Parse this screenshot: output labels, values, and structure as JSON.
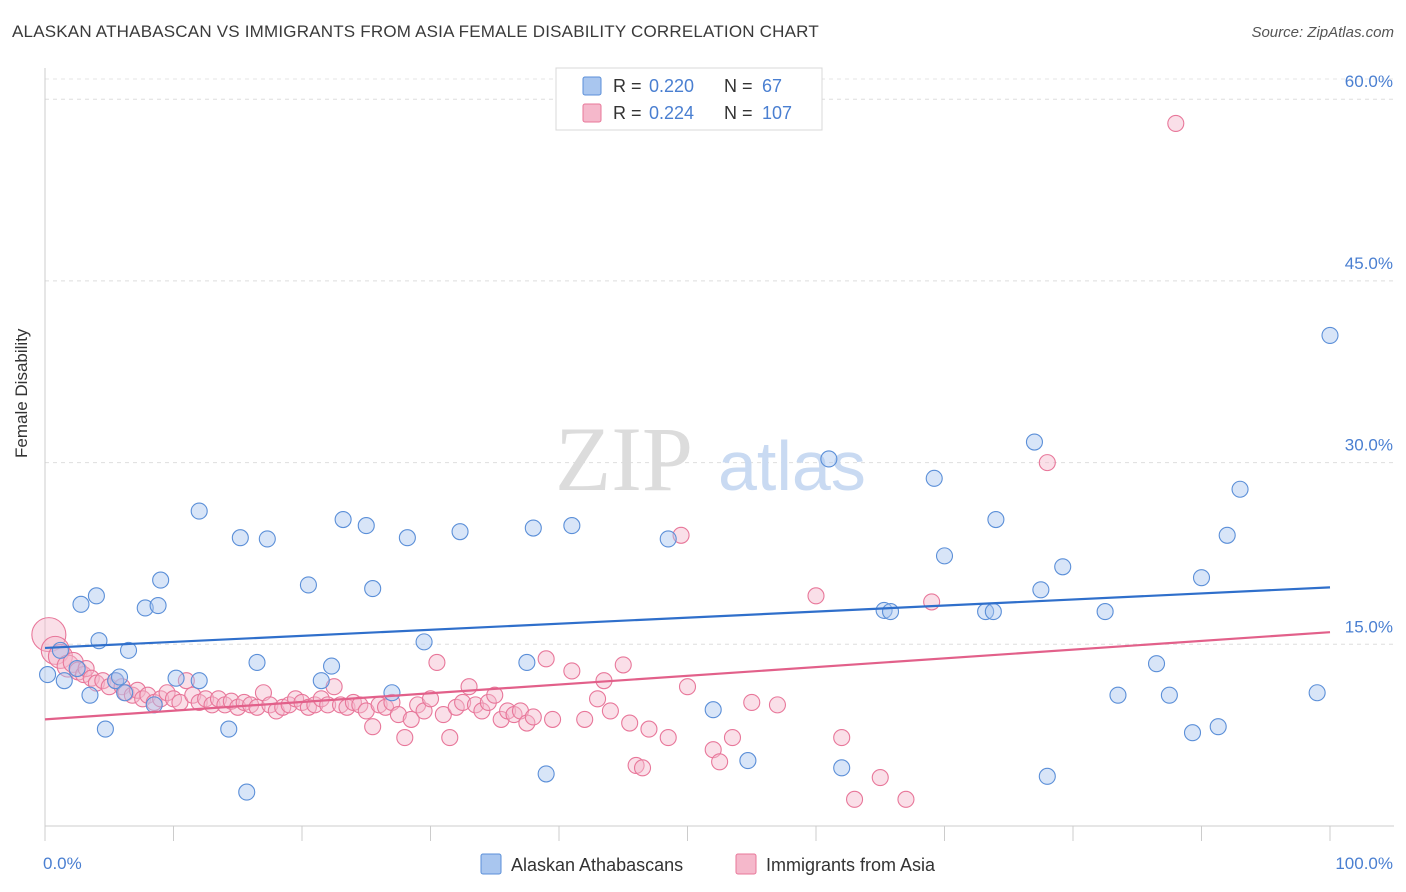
{
  "title": "ALASKAN ATHABASCAN VS IMMIGRANTS FROM ASIA FEMALE DISABILITY CORRELATION CHART",
  "source": "Source: ZipAtlas.com",
  "watermark": {
    "zip": "ZIP",
    "atlas": "atlas"
  },
  "chart_data": {
    "type": "scatter",
    "xlabel": "",
    "ylabel": "Female Disability",
    "xlim": [
      0,
      100
    ],
    "ylim": [
      0,
      62
    ],
    "x_tick_labels": [
      "0.0%",
      "100.0%"
    ],
    "y_ticks": [
      15,
      30,
      45,
      60
    ],
    "y_tick_labels": [
      "15.0%",
      "30.0%",
      "45.0%",
      "60.0%"
    ],
    "grid": true,
    "legend_position": "top-center",
    "colors": {
      "blue": "#5b8fd8",
      "blue_fill": "#a9c6ef",
      "blue_line": "#2f6fcb",
      "pink": "#e8779a",
      "pink_fill": "#f5b8cb",
      "pink_line": "#e2608a",
      "tick_label": "#4a7fd1"
    },
    "stats": [
      {
        "r_label": "R = ",
        "r_value": "0.220",
        "n_label": "N = ",
        "n_value": " 67"
      },
      {
        "r_label": "R = ",
        "r_value": "0.224",
        "n_label": "N = ",
        "n_value": "107"
      }
    ],
    "series": [
      {
        "name": "Alaskan Athabascans",
        "color": "#5b8fd8",
        "trend": [
          [
            0,
            14.7
          ],
          [
            100,
            19.7
          ]
        ],
        "points": [
          [
            0.2,
            12.5
          ],
          [
            1.5,
            12.0
          ],
          [
            1.2,
            14.5
          ],
          [
            2.5,
            13.0
          ],
          [
            2.8,
            18.3
          ],
          [
            3.5,
            10.8
          ],
          [
            4.0,
            19.0
          ],
          [
            4.2,
            15.3
          ],
          [
            4.7,
            8.0
          ],
          [
            5.5,
            12.0
          ],
          [
            5.8,
            12.3
          ],
          [
            6.2,
            11.0
          ],
          [
            6.5,
            14.5
          ],
          [
            7.8,
            18.0
          ],
          [
            8.5,
            10.0
          ],
          [
            8.8,
            18.2
          ],
          [
            9.0,
            20.3
          ],
          [
            10.2,
            12.2
          ],
          [
            12.0,
            12.0
          ],
          [
            12.0,
            26.0
          ],
          [
            14.3,
            8.0
          ],
          [
            15.2,
            23.8
          ],
          [
            15.7,
            2.8
          ],
          [
            16.5,
            13.5
          ],
          [
            17.3,
            23.7
          ],
          [
            20.5,
            19.9
          ],
          [
            21.5,
            12.0
          ],
          [
            22.3,
            13.2
          ],
          [
            23.2,
            25.3
          ],
          [
            25.0,
            24.8
          ],
          [
            25.5,
            19.6
          ],
          [
            27.0,
            11.0
          ],
          [
            28.2,
            23.8
          ],
          [
            29.5,
            15.2
          ],
          [
            32.3,
            24.3
          ],
          [
            37.5,
            13.5
          ],
          [
            38.0,
            24.6
          ],
          [
            39.0,
            4.3
          ],
          [
            41.0,
            24.8
          ],
          [
            48.5,
            23.7
          ],
          [
            52.0,
            9.6
          ],
          [
            54.7,
            5.4
          ],
          [
            61.0,
            30.3
          ],
          [
            62.0,
            4.8
          ],
          [
            65.3,
            17.8
          ],
          [
            65.8,
            17.7
          ],
          [
            69.2,
            28.7
          ],
          [
            70.0,
            22.3
          ],
          [
            73.2,
            17.7
          ],
          [
            73.8,
            17.7
          ],
          [
            74.0,
            25.3
          ],
          [
            77.0,
            31.7
          ],
          [
            77.5,
            19.5
          ],
          [
            78.0,
            4.1
          ],
          [
            79.2,
            21.4
          ],
          [
            82.5,
            17.7
          ],
          [
            83.5,
            10.8
          ],
          [
            86.5,
            13.4
          ],
          [
            87.5,
            10.8
          ],
          [
            89.3,
            7.7
          ],
          [
            90.0,
            20.5
          ],
          [
            91.3,
            8.2
          ],
          [
            92.0,
            24.0
          ],
          [
            93.0,
            27.8
          ],
          [
            99.0,
            11.0
          ],
          [
            100.0,
            40.5
          ]
        ]
      },
      {
        "name": "Immigrants from Asia",
        "color": "#e8779a",
        "trend": [
          [
            0,
            8.8
          ],
          [
            100,
            16.0
          ]
        ],
        "points": [
          [
            0.3,
            15.8
          ],
          [
            0.8,
            14.5
          ],
          [
            1.2,
            14.0
          ],
          [
            1.8,
            13.2
          ],
          [
            2.2,
            13.5
          ],
          [
            2.6,
            12.8
          ],
          [
            3.0,
            12.5
          ],
          [
            3.2,
            13.0
          ],
          [
            3.6,
            12.2
          ],
          [
            4.0,
            11.8
          ],
          [
            4.5,
            12.0
          ],
          [
            5.0,
            11.5
          ],
          [
            5.5,
            12.0
          ],
          [
            6.0,
            11.5
          ],
          [
            6.3,
            11.0
          ],
          [
            6.8,
            10.8
          ],
          [
            7.2,
            11.2
          ],
          [
            7.6,
            10.5
          ],
          [
            8.0,
            10.8
          ],
          [
            8.5,
            10.2
          ],
          [
            9.0,
            10.5
          ],
          [
            9.5,
            11.0
          ],
          [
            10.0,
            10.5
          ],
          [
            10.5,
            10.2
          ],
          [
            11.0,
            12.0
          ],
          [
            11.5,
            10.8
          ],
          [
            12.0,
            10.2
          ],
          [
            12.5,
            10.5
          ],
          [
            13.0,
            10.0
          ],
          [
            13.5,
            10.5
          ],
          [
            14.0,
            10.0
          ],
          [
            14.5,
            10.3
          ],
          [
            15.0,
            9.8
          ],
          [
            15.5,
            10.2
          ],
          [
            16.0,
            10.0
          ],
          [
            16.5,
            9.8
          ],
          [
            17.0,
            11.0
          ],
          [
            17.5,
            10.0
          ],
          [
            18.0,
            9.5
          ],
          [
            18.5,
            9.8
          ],
          [
            19.0,
            10.0
          ],
          [
            19.5,
            10.5
          ],
          [
            20.0,
            10.2
          ],
          [
            20.5,
            9.8
          ],
          [
            21.0,
            10.0
          ],
          [
            21.5,
            10.5
          ],
          [
            22.0,
            10.0
          ],
          [
            22.5,
            11.5
          ],
          [
            23.0,
            10.0
          ],
          [
            23.5,
            9.8
          ],
          [
            24.0,
            10.2
          ],
          [
            24.5,
            10.0
          ],
          [
            25.0,
            9.5
          ],
          [
            25.5,
            8.2
          ],
          [
            26.0,
            10.0
          ],
          [
            26.5,
            9.8
          ],
          [
            27.0,
            10.2
          ],
          [
            27.5,
            9.2
          ],
          [
            28.0,
            7.3
          ],
          [
            28.5,
            8.8
          ],
          [
            29.0,
            10.0
          ],
          [
            29.5,
            9.5
          ],
          [
            30.0,
            10.5
          ],
          [
            30.5,
            13.5
          ],
          [
            31.0,
            9.2
          ],
          [
            31.5,
            7.3
          ],
          [
            32.0,
            9.8
          ],
          [
            32.5,
            10.2
          ],
          [
            33.0,
            11.5
          ],
          [
            33.5,
            10.0
          ],
          [
            34.0,
            9.5
          ],
          [
            34.5,
            10.2
          ],
          [
            35.0,
            10.8
          ],
          [
            35.5,
            8.8
          ],
          [
            36.0,
            9.5
          ],
          [
            36.5,
            9.2
          ],
          [
            37.0,
            9.5
          ],
          [
            37.5,
            8.5
          ],
          [
            38.0,
            9.0
          ],
          [
            39.0,
            13.8
          ],
          [
            39.5,
            8.8
          ],
          [
            41.0,
            12.8
          ],
          [
            42.0,
            8.8
          ],
          [
            43.0,
            10.5
          ],
          [
            43.5,
            12.0
          ],
          [
            44.0,
            9.5
          ],
          [
            45.0,
            13.3
          ],
          [
            45.5,
            8.5
          ],
          [
            46.0,
            5.0
          ],
          [
            46.5,
            4.8
          ],
          [
            47.0,
            8.0
          ],
          [
            48.5,
            7.3
          ],
          [
            49.5,
            24.0
          ],
          [
            50.0,
            11.5
          ],
          [
            52.0,
            6.3
          ],
          [
            52.5,
            5.3
          ],
          [
            53.5,
            7.3
          ],
          [
            55.0,
            10.2
          ],
          [
            57.0,
            10.0
          ],
          [
            60.0,
            19.0
          ],
          [
            62.0,
            7.3
          ],
          [
            63.0,
            2.2
          ],
          [
            65.0,
            4.0
          ],
          [
            67.0,
            2.2
          ],
          [
            69.0,
            18.5
          ],
          [
            78.0,
            30.0
          ],
          [
            88.0,
            58.0
          ]
        ]
      }
    ]
  }
}
